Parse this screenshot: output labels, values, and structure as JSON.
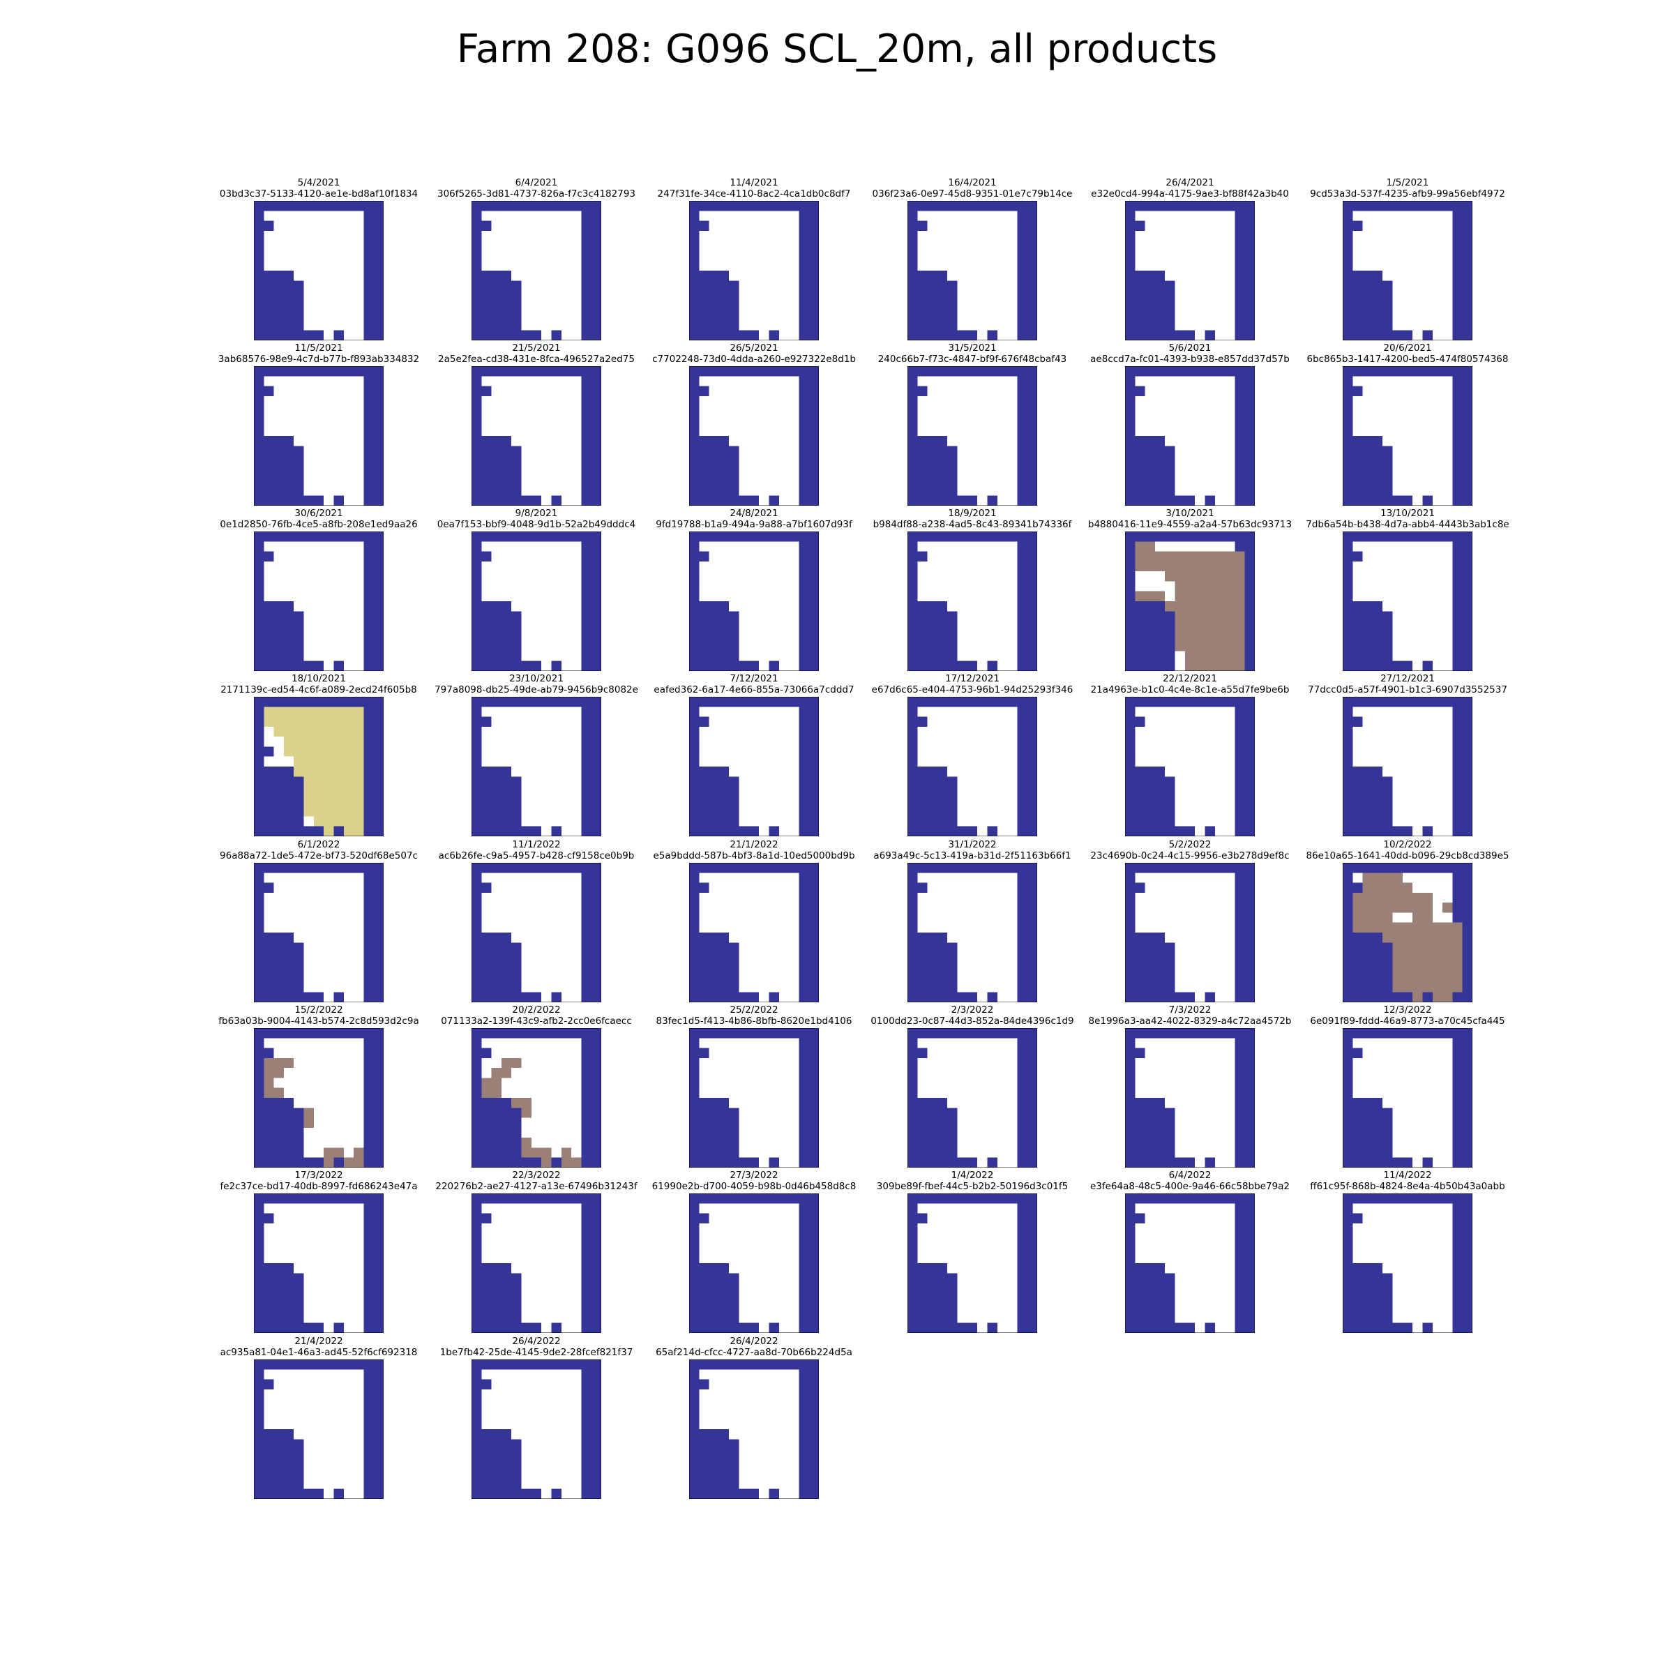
{
  "title": "Farm 208: G096 SCL_20m, all products",
  "colors": {
    "no_data": "#353598",
    "clear": "#ffffff",
    "cloud_shadow": "#9b8077",
    "thin_cirrus": "#dcd18b",
    "frame": "#000000"
  },
  "chart_data": {
    "type": "heatmap",
    "grid_rows": 14,
    "grid_cols": 13,
    "legend": "none",
    "base_mask": [
      "BBBBBBBBBBBBB",
      "BWWWWWWWWWWBB",
      "BBWWWWWWWWWBB",
      "BWWWWWWWWWWBB",
      "BWWWWWWWWWWBB",
      "BWWWWWWWWWWBB",
      "BWWWWWWWWWWBB",
      "BBBBWWWWWWWBB",
      "BBBBBWWWWWWBB",
      "BBBBBWWWWWWBB",
      "BBBBBWWWWWWBB",
      "BBBBBWWWWWWBB",
      "BBBBBWWWWWWBB",
      "BBBBBBBWBWWBB"
    ],
    "panels": [
      {
        "date": "5/4/2021",
        "id": "03bd3c37-5133-4120-ae1e-bd8af10f1834",
        "variant": "base"
      },
      {
        "date": "6/4/2021",
        "id": "306f5265-3d81-4737-826a-f7c3c4182793",
        "variant": "base"
      },
      {
        "date": "11/4/2021",
        "id": "247f31fe-34ce-4110-8ac2-4ca1db0c8df7",
        "variant": "base"
      },
      {
        "date": "16/4/2021",
        "id": "036f23a6-0e97-45d8-9351-01e7c79b14ce",
        "variant": "base"
      },
      {
        "date": "26/4/2021",
        "id": "e32e0cd4-994a-4175-9ae3-bf88f42a3b40",
        "variant": "base"
      },
      {
        "date": "1/5/2021",
        "id": "9cd53a3d-537f-4235-afb9-99a56ebf4972",
        "variant": "base"
      },
      {
        "date": "11/5/2021",
        "id": "3ab68576-98e9-4c7d-b77b-f893ab334832",
        "variant": "base"
      },
      {
        "date": "21/5/2021",
        "id": "2a5e2fea-cd38-431e-8fca-496527a2ed75",
        "variant": "base"
      },
      {
        "date": "26/5/2021",
        "id": "c7702248-73d0-4dda-a260-e927322e8d1b",
        "variant": "base"
      },
      {
        "date": "31/5/2021",
        "id": "240c66b7-f73c-4847-bf9f-676f48cbaf43",
        "variant": "base"
      },
      {
        "date": "5/6/2021",
        "id": "ae8ccd7a-fc01-4393-b938-e857dd37d57b",
        "variant": "base"
      },
      {
        "date": "20/6/2021",
        "id": "6bc865b3-1417-4200-bed5-474f80574368",
        "variant": "base"
      },
      {
        "date": "30/6/2021",
        "id": "0e1d2850-76fb-4ce5-a8fb-208e1ed9aa26",
        "variant": "base"
      },
      {
        "date": "9/8/2021",
        "id": "0ea7f153-bbf9-4048-9d1b-52a2b49dddc4",
        "variant": "base"
      },
      {
        "date": "24/8/2021",
        "id": "9fd19788-b1a9-494a-9a88-a7bf1607d93f",
        "variant": "base"
      },
      {
        "date": "18/9/2021",
        "id": "b984df88-a238-4ad5-8c43-89341b74336f",
        "variant": "base"
      },
      {
        "date": "3/10/2021",
        "id": "b4880416-11e9-4559-a2a4-57b63dc93713",
        "variant": "shadow_full"
      },
      {
        "date": "13/10/2021",
        "id": "7db6a54b-b438-4d7a-abb4-4443b3ab1c8e",
        "variant": "base"
      },
      {
        "date": "18/10/2021",
        "id": "2171139c-ed54-4c6f-a089-2ecd24f605b8",
        "variant": "cirrus"
      },
      {
        "date": "23/10/2021",
        "id": "797a8098-db25-49de-ab79-9456b9c8082e",
        "variant": "base"
      },
      {
        "date": "7/12/2021",
        "id": "eafed362-6a17-4e66-855a-73066a7cddd7",
        "variant": "base"
      },
      {
        "date": "17/12/2021",
        "id": "e67d6c65-e404-4753-96b1-94d25293f346",
        "variant": "base"
      },
      {
        "date": "22/12/2021",
        "id": "21a4963e-b1c0-4c4e-8c1e-a55d7fe9be6b",
        "variant": "base"
      },
      {
        "date": "27/12/2021",
        "id": "77dcc0d5-a57f-4901-b1c3-6907d3552537",
        "variant": "base"
      },
      {
        "date": "6/1/2022",
        "id": "96a88a72-1de5-472e-bf73-520df68e507c",
        "variant": "base"
      },
      {
        "date": "11/1/2022",
        "id": "ac6b26fe-c9a5-4957-b428-cf9158ce0b9b",
        "variant": "base"
      },
      {
        "date": "21/1/2022",
        "id": "e5a9bddd-587b-4bf3-8a1d-10ed5000bd9b",
        "variant": "base"
      },
      {
        "date": "31/1/2022",
        "id": "a693a49c-5c13-419a-b31d-2f51163b66f1",
        "variant": "base"
      },
      {
        "date": "5/2/2022",
        "id": "23c4690b-0c24-4c15-9956-e3b278d9ef8c",
        "variant": "base"
      },
      {
        "date": "10/2/2022",
        "id": "86e10a65-1641-40dd-b096-29cb8cd389e5",
        "variant": "shadow_partial"
      },
      {
        "date": "15/2/2022",
        "id": "fb63a03b-9004-4143-b574-2c8d593d2c9a",
        "variant": "shadow_edge_a"
      },
      {
        "date": "20/2/2022",
        "id": "071133a2-139f-43c9-afb2-2cc0e6fcaecc",
        "variant": "shadow_edge_b"
      },
      {
        "date": "25/2/2022",
        "id": "83fec1d5-f413-4b86-8bfb-8620e1bd4106",
        "variant": "base"
      },
      {
        "date": "2/3/2022",
        "id": "0100dd23-0c87-44d3-852a-84de4396c1d9",
        "variant": "base"
      },
      {
        "date": "7/3/2022",
        "id": "8e1996a3-aa42-4022-8329-a4c72aa4572b",
        "variant": "base"
      },
      {
        "date": "12/3/2022",
        "id": "6e091f89-fddd-46a9-8773-a70c45cfa445",
        "variant": "base"
      },
      {
        "date": "17/3/2022",
        "id": "fe2c37ce-bd17-40db-8997-fd686243e47a",
        "variant": "base"
      },
      {
        "date": "22/3/2022",
        "id": "220276b2-ae27-4127-a13e-67496b31243f",
        "variant": "base"
      },
      {
        "date": "27/3/2022",
        "id": "61990e2b-d700-4059-b98b-0d46b458d8c8",
        "variant": "base"
      },
      {
        "date": "1/4/2022",
        "id": "309be89f-fbef-44c5-b2b2-50196d3c01f5",
        "variant": "base"
      },
      {
        "date": "6/4/2022",
        "id": "e3fe64a8-48c5-400e-9a46-66c58bbe79a2",
        "variant": "base"
      },
      {
        "date": "11/4/2022",
        "id": "ff61c95f-868b-4824-8e4a-4b50b43a0abb",
        "variant": "base"
      },
      {
        "date": "21/4/2022",
        "id": "ac935a81-04e1-46a3-ad45-52f6cf692318",
        "variant": "base"
      },
      {
        "date": "26/4/2022",
        "id": "1be7fb42-25de-4145-9de2-28fcef821f37",
        "variant": "base"
      },
      {
        "date": "26/4/2022",
        "id": "65af214d-cfcc-4727-aa8d-70b66b224d5a",
        "variant": "base"
      }
    ],
    "variants": {
      "shadow_full": [
        "BBBBBBBBBBBBB",
        "BSSWWWWWWWWBB",
        "BSSSSSSSSSSSB",
        "BSSSSSSSSSSSB",
        "BWWWSSSSSSSSB",
        "BWWWWSSSSSSSB",
        "BSSSWSSSSSSSB",
        "BBBBSSSSSSSSB",
        "BBBBBSSSSSSSB",
        "BBBBBSSSSSSSB",
        "BBBBBSSSSSSSB",
        "BBBBBSSSSSSSB",
        "BBBBBWSSSSSSB",
        "BBBBBWSSSSSSB"
      ],
      "cirrus": [
        "BBBBBBBBBBBBB",
        "BCCCCCCCCCCBB",
        "BCCCCCCCCCCBB",
        "BWCCCCCCCCCBB",
        "BWWCCCCCCCCBB",
        "BBWCCCCCCCCBB",
        "BWWWCCCCCCCBB",
        "BBBBCCCCCCCBB",
        "BBBBBCCCCCCBB",
        "BBBBBCCCCCCBB",
        "BBBBBCCCCCCBB",
        "BBBBBCCCCCCBB",
        "BBBBBWCCCCCBB",
        "BBBBBBBCBCCBB"
      ],
      "shadow_partial": [
        "BBBBBBBBBBBBB",
        "BWSSSSWWWWWBB",
        "BBSSSSSWWWWBB",
        "BSSSSSSSSWWBB",
        "BSSSSSSSSWSBB",
        "BSSSSWWSSWWBB",
        "BSSSSSSSSSSSB",
        "BBBBSSSSSSSSB",
        "BBBBBSSSSSSSB",
        "BBBBBSSSSSSSB",
        "BBBBBSSSSSSSB",
        "BBBBBSSSSSSSB",
        "BBBBBSSSSSSSB",
        "BBBBBBBSBSSBB"
      ],
      "shadow_edge_a": [
        "BBBBBBBBBBBBB",
        "BWWWWWWWWWWBB",
        "BBWWWWWWWWWBB",
        "BSSSWWWWWWWBB",
        "BSSWWWWWWWWBB",
        "BSWWWWWWWWWBB",
        "BSSWWWWWWWWBB",
        "BBBBWWWWWWWBB",
        "BBBBBSWWWWWBB",
        "BBBBBSWWWWWBB",
        "BBBBBWWWWWWBB",
        "BBBBBWWWWWWBB",
        "BBBBBWWSSWSBB",
        "BBBBBBBSBSSBB"
      ],
      "shadow_edge_b": [
        "BBBBBBBBBBBBB",
        "BWWWWWWWWWWBB",
        "BBWWWWWWWWWBB",
        "BWWSSWWWWWWBB",
        "BWSSWWWWWWWBB",
        "BSSWWWWWWWWBB",
        "BSSWWWWWWWWBB",
        "BBBBSSWWWWWBB",
        "BBBBBSWWWWWBB",
        "BBBBBWWWWWWBB",
        "BBBBBWWWWWWBB",
        "BBBBBSWWWWWBB",
        "BBBBBSSSWSWBB",
        "BBBBBBBSBSSBB"
      ]
    }
  }
}
